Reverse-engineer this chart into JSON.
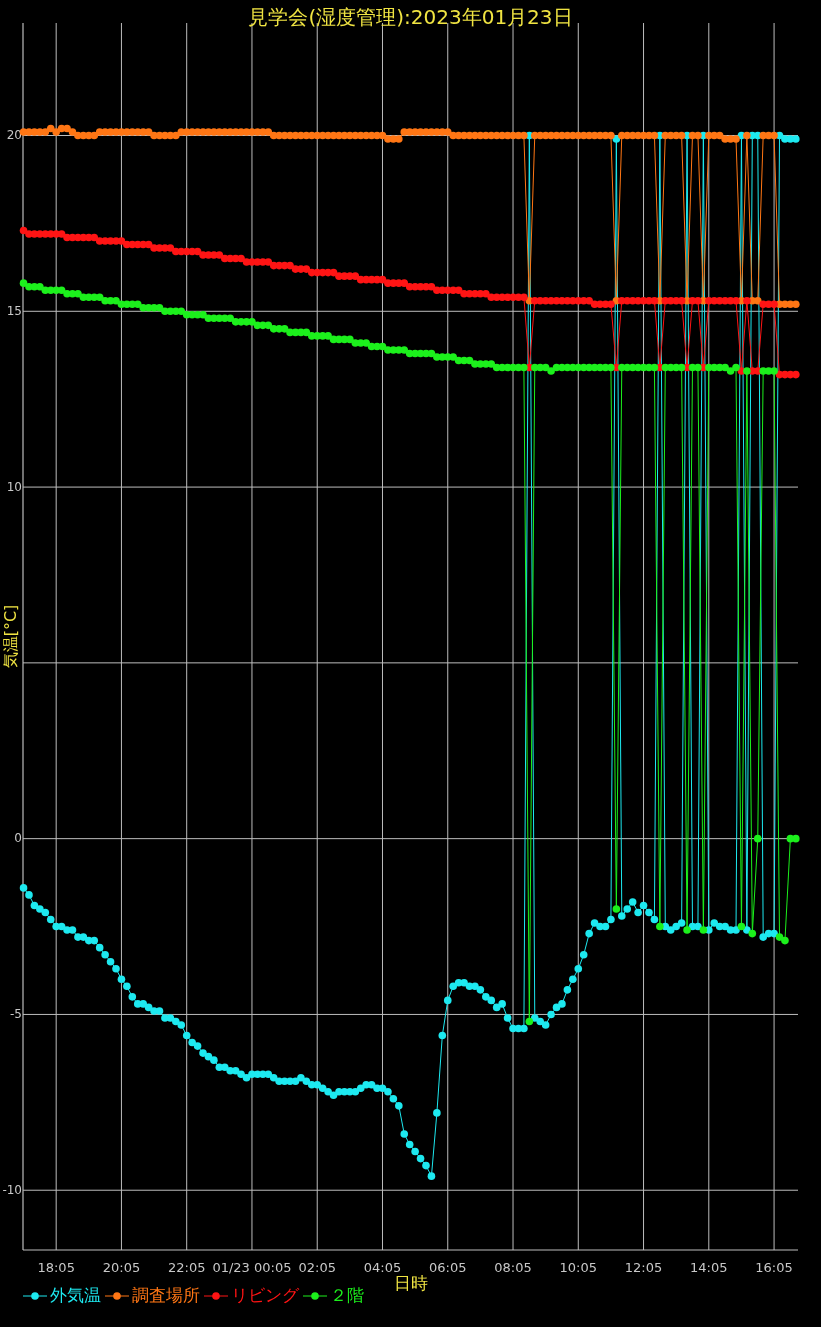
{
  "chart_data": {
    "type": "line",
    "title": "見学会(湿度管理):2023年01月23日",
    "xlabel": "日時",
    "ylabel": "気温[°C]",
    "xlim": [
      "2023-01-22T17:04",
      "2023-01-23T16:49"
    ],
    "ylim": [
      -11.7,
      23.2
    ],
    "xticks": [
      {
        "value": "2023-01-22T18:05",
        "label": "18:05"
      },
      {
        "value": "2023-01-22T20:05",
        "label": "20:05"
      },
      {
        "value": "2023-01-22T22:05",
        "label": "22:05"
      },
      {
        "value": "2023-01-23T00:05",
        "label": "01/23 00:05"
      },
      {
        "value": "2023-01-23T02:05",
        "label": "02:05"
      },
      {
        "value": "2023-01-23T04:05",
        "label": "04:05"
      },
      {
        "value": "2023-01-23T06:05",
        "label": "06:05"
      },
      {
        "value": "2023-01-23T08:05",
        "label": "08:05"
      },
      {
        "value": "2023-01-23T10:05",
        "label": "10:05"
      },
      {
        "value": "2023-01-23T12:05",
        "label": "12:05"
      },
      {
        "value": "2023-01-23T14:05",
        "label": "14:05"
      },
      {
        "value": "2023-01-23T16:05",
        "label": "16:05"
      }
    ],
    "yticks": [
      -10,
      -5,
      0,
      {
        "value": 5,
        "label": null
      },
      10,
      15,
      20
    ],
    "grid": true,
    "legend": "bottom left",
    "marker": "circle",
    "line_style": "solid",
    "x": [
      "2023-01-22T17:05",
      "2023-01-22T17:15",
      "2023-01-22T17:25",
      "2023-01-22T17:35",
      "2023-01-22T17:45",
      "2023-01-22T17:55",
      "2023-01-22T18:05",
      "2023-01-22T18:15",
      "2023-01-22T18:25",
      "2023-01-22T18:35",
      "2023-01-22T18:45",
      "2023-01-22T18:55",
      "2023-01-22T19:05",
      "2023-01-22T19:15",
      "2023-01-22T19:25",
      "2023-01-22T19:35",
      "2023-01-22T19:45",
      "2023-01-22T19:55",
      "2023-01-22T20:05",
      "2023-01-22T20:15",
      "2023-01-22T20:25",
      "2023-01-22T20:35",
      "2023-01-22T20:45",
      "2023-01-22T20:55",
      "2023-01-22T21:05",
      "2023-01-22T21:15",
      "2023-01-22T21:25",
      "2023-01-22T21:35",
      "2023-01-22T21:45",
      "2023-01-22T21:55",
      "2023-01-22T22:05",
      "2023-01-22T22:15",
      "2023-01-22T22:25",
      "2023-01-22T22:35",
      "2023-01-22T22:45",
      "2023-01-22T22:55",
      "2023-01-22T23:05",
      "2023-01-22T23:15",
      "2023-01-22T23:25",
      "2023-01-22T23:35",
      "2023-01-22T23:45",
      "2023-01-22T23:55",
      "2023-01-23T00:05",
      "2023-01-23T00:15",
      "2023-01-23T00:25",
      "2023-01-23T00:35",
      "2023-01-23T00:45",
      "2023-01-23T00:55",
      "2023-01-23T01:05",
      "2023-01-23T01:15",
      "2023-01-23T01:25",
      "2023-01-23T01:35",
      "2023-01-23T01:45",
      "2023-01-23T01:55",
      "2023-01-23T02:05",
      "2023-01-23T02:15",
      "2023-01-23T02:25",
      "2023-01-23T02:35",
      "2023-01-23T02:45",
      "2023-01-23T02:55",
      "2023-01-23T03:05",
      "2023-01-23T03:15",
      "2023-01-23T03:25",
      "2023-01-23T03:35",
      "2023-01-23T03:45",
      "2023-01-23T03:55",
      "2023-01-23T04:05",
      "2023-01-23T04:15",
      "2023-01-23T04:25",
      "2023-01-23T04:35",
      "2023-01-23T04:45",
      "2023-01-23T04:55",
      "2023-01-23T05:05",
      "2023-01-23T05:15",
      "2023-01-23T05:25",
      "2023-01-23T05:35",
      "2023-01-23T05:45",
      "2023-01-23T05:55",
      "2023-01-23T06:05",
      "2023-01-23T06:15",
      "2023-01-23T06:25",
      "2023-01-23T06:35",
      "2023-01-23T06:45",
      "2023-01-23T06:55",
      "2023-01-23T07:05",
      "2023-01-23T07:15",
      "2023-01-23T07:25",
      "2023-01-23T07:35",
      "2023-01-23T07:45",
      "2023-01-23T07:55",
      "2023-01-23T08:05",
      "2023-01-23T08:15",
      "2023-01-23T08:25",
      "2023-01-23T08:35",
      "2023-01-23T08:45",
      "2023-01-23T08:55",
      "2023-01-23T09:05",
      "2023-01-23T09:15",
      "2023-01-23T09:25",
      "2023-01-23T09:35",
      "2023-01-23T09:45",
      "2023-01-23T09:55",
      "2023-01-23T10:05",
      "2023-01-23T10:15",
      "2023-01-23T10:25",
      "2023-01-23T10:35",
      "2023-01-23T10:45",
      "2023-01-23T10:55",
      "2023-01-23T11:05",
      "2023-01-23T11:15",
      "2023-01-23T11:25",
      "2023-01-23T11:35",
      "2023-01-23T11:45",
      "2023-01-23T11:55",
      "2023-01-23T12:05",
      "2023-01-23T12:15",
      "2023-01-23T12:25",
      "2023-01-23T12:35",
      "2023-01-23T12:45",
      "2023-01-23T12:55",
      "2023-01-23T13:05",
      "2023-01-23T13:15",
      "2023-01-23T13:25",
      "2023-01-23T13:35",
      "2023-01-23T13:45",
      "2023-01-23T13:55",
      "2023-01-23T14:05",
      "2023-01-23T14:15",
      "2023-01-23T14:25",
      "2023-01-23T14:35",
      "2023-01-23T14:45",
      "2023-01-23T14:55",
      "2023-01-23T15:05",
      "2023-01-23T15:15",
      "2023-01-23T15:25",
      "2023-01-23T15:35",
      "2023-01-23T15:45",
      "2023-01-23T15:55",
      "2023-01-23T16:05",
      "2023-01-23T16:15",
      "2023-01-23T16:25",
      "2023-01-23T16:35",
      "2023-01-23T16:45"
    ],
    "series": [
      {
        "name": "外気温",
        "color": "#1de9f0",
        "values": [
          -1.4,
          -1.6,
          -1.9,
          -2.0,
          -2.1,
          -2.3,
          -2.5,
          -2.5,
          -2.6,
          -2.6,
          -2.8,
          -2.8,
          -2.9,
          -2.9,
          -3.1,
          -3.3,
          -3.5,
          -3.7,
          -4.0,
          -4.2,
          -4.5,
          -4.7,
          -4.7,
          -4.8,
          -4.9,
          -4.9,
          -5.1,
          -5.1,
          -5.2,
          -5.3,
          -5.6,
          -5.8,
          -5.9,
          -6.1,
          -6.2,
          -6.3,
          -6.5,
          -6.5,
          -6.6,
          -6.6,
          -6.7,
          -6.8,
          -6.7,
          -6.7,
          -6.7,
          -6.7,
          -6.8,
          -6.9,
          -6.9,
          -6.9,
          -6.9,
          -6.8,
          -6.9,
          -7.0,
          -7.0,
          -7.1,
          -7.2,
          -7.3,
          -7.2,
          -7.2,
          -7.2,
          -7.2,
          -7.1,
          -7.0,
          -7.0,
          -7.1,
          -7.1,
          -7.2,
          -7.4,
          -7.6,
          -8.4,
          -8.7,
          -8.9,
          -9.1,
          -9.3,
          -9.6,
          -7.8,
          -5.6,
          -4.6,
          -4.2,
          -4.1,
          -4.1,
          -4.2,
          -4.2,
          -4.3,
          -4.5,
          -4.6,
          -4.8,
          -4.7,
          -5.1,
          -5.4,
          -5.4,
          -5.4,
          20.0,
          -5.1,
          -5.2,
          -5.3,
          -5.0,
          -4.8,
          -4.7,
          -4.3,
          -4.0,
          -3.7,
          -3.3,
          -2.7,
          -2.4,
          -2.5,
          -2.5,
          -2.3,
          19.9,
          -2.2,
          -2.0,
          -1.8,
          -2.1,
          -1.9,
          -2.1,
          -2.3,
          20.0,
          -2.5,
          -2.6,
          -2.5,
          -2.4,
          20.0,
          -2.5,
          -2.5,
          20.0,
          -2.6,
          -2.4,
          -2.5,
          -2.5,
          -2.6,
          -2.6,
          20.0,
          -2.6,
          20.0,
          20.0,
          -2.8,
          -2.7,
          -2.7,
          20.0,
          19.9,
          19.9,
          19.9
        ]
      },
      {
        "name": "調査場所",
        "color": "#ff7614",
        "values": [
          20.1,
          20.1,
          20.1,
          20.1,
          20.1,
          20.2,
          20.1,
          20.2,
          20.2,
          20.1,
          20,
          20,
          20,
          20,
          20.1,
          20.1,
          20.1,
          20.1,
          20.1,
          20.1,
          20.1,
          20.1,
          20.1,
          20.1,
          20,
          20,
          20,
          20,
          20,
          20.1,
          20.1,
          20.1,
          20.1,
          20.1,
          20.1,
          20.1,
          20.1,
          20.1,
          20.1,
          20.1,
          20.1,
          20.1,
          20.1,
          20.1,
          20.1,
          20.1,
          20,
          20,
          20,
          20,
          20,
          20,
          20,
          20,
          20,
          20,
          20,
          20,
          20,
          20,
          20,
          20,
          20,
          20,
          20,
          20,
          20,
          19.9,
          19.9,
          19.9,
          20.1,
          20.1,
          20.1,
          20.1,
          20.1,
          20.1,
          20.1,
          20.1,
          20.1,
          20,
          20,
          20,
          20,
          20,
          20,
          20,
          20,
          20,
          20,
          20,
          20,
          20,
          20,
          15.3,
          20,
          20,
          20,
          20,
          20,
          20,
          20,
          20,
          20,
          20,
          20,
          20,
          20,
          20,
          20,
          15.3,
          20,
          20,
          20,
          20,
          20,
          20,
          20,
          15.3,
          20,
          20,
          20,
          20,
          15.3,
          20,
          20,
          15.3,
          20,
          20,
          20,
          19.9,
          19.9,
          19.9,
          15.3,
          20,
          15.3,
          15.3,
          20,
          20,
          20,
          15.2,
          15.2,
          15.2,
          15.2
        ]
      },
      {
        "name": "リビング",
        "color": "#ff1414",
        "values": [
          17.3,
          17.2,
          17.2,
          17.2,
          17.2,
          17.2,
          17.2,
          17.2,
          17.1,
          17.1,
          17.1,
          17.1,
          17.1,
          17.1,
          17,
          17,
          17,
          17,
          17,
          16.9,
          16.9,
          16.9,
          16.9,
          16.9,
          16.8,
          16.8,
          16.8,
          16.8,
          16.7,
          16.7,
          16.7,
          16.7,
          16.7,
          16.6,
          16.6,
          16.6,
          16.6,
          16.5,
          16.5,
          16.5,
          16.5,
          16.4,
          16.4,
          16.4,
          16.4,
          16.4,
          16.3,
          16.3,
          16.3,
          16.3,
          16.2,
          16.2,
          16.2,
          16.1,
          16.1,
          16.1,
          16.1,
          16.1,
          16,
          16,
          16,
          16,
          15.9,
          15.9,
          15.9,
          15.9,
          15.9,
          15.8,
          15.8,
          15.8,
          15.8,
          15.7,
          15.7,
          15.7,
          15.7,
          15.7,
          15.6,
          15.6,
          15.6,
          15.6,
          15.6,
          15.5,
          15.5,
          15.5,
          15.5,
          15.5,
          15.4,
          15.4,
          15.4,
          15.4,
          15.4,
          15.4,
          15.4,
          13.4,
          15.3,
          15.3,
          15.3,
          15.3,
          15.3,
          15.3,
          15.3,
          15.3,
          15.3,
          15.3,
          15.3,
          15.2,
          15.2,
          15.2,
          15.2,
          13.4,
          15.3,
          15.3,
          15.3,
          15.3,
          15.3,
          15.3,
          15.3,
          13.4,
          15.3,
          15.3,
          15.3,
          15.3,
          13.4,
          15.3,
          15.3,
          13.4,
          15.3,
          15.3,
          15.3,
          15.3,
          15.3,
          15.3,
          13.3,
          15.3,
          13.3,
          13.3,
          15.2,
          15.2,
          15.2,
          13.2,
          13.2,
          13.2,
          13.2
        ]
      },
      {
        "name": "２階",
        "color": "#1cf01c",
        "values": [
          15.8,
          15.7,
          15.7,
          15.7,
          15.6,
          15.6,
          15.6,
          15.6,
          15.5,
          15.5,
          15.5,
          15.4,
          15.4,
          15.4,
          15.4,
          15.3,
          15.3,
          15.3,
          15.2,
          15.2,
          15.2,
          15.2,
          15.1,
          15.1,
          15.1,
          15.1,
          15,
          15,
          15,
          15,
          14.9,
          14.9,
          14.9,
          14.9,
          14.8,
          14.8,
          14.8,
          14.8,
          14.8,
          14.7,
          14.7,
          14.7,
          14.7,
          14.6,
          14.6,
          14.6,
          14.5,
          14.5,
          14.5,
          14.4,
          14.4,
          14.4,
          14.4,
          14.3,
          14.3,
          14.3,
          14.3,
          14.2,
          14.2,
          14.2,
          14.2,
          14.1,
          14.1,
          14.1,
          14,
          14,
          14,
          13.9,
          13.9,
          13.9,
          13.9,
          13.8,
          13.8,
          13.8,
          13.8,
          13.8,
          13.7,
          13.7,
          13.7,
          13.7,
          13.6,
          13.6,
          13.6,
          13.5,
          13.5,
          13.5,
          13.5,
          13.4,
          13.4,
          13.4,
          13.4,
          13.4,
          13.4,
          -5.2,
          13.4,
          13.4,
          13.4,
          13.3,
          13.4,
          13.4,
          13.4,
          13.4,
          13.4,
          13.4,
          13.4,
          13.4,
          13.4,
          13.4,
          13.4,
          -2.0,
          13.4,
          13.4,
          13.4,
          13.4,
          13.4,
          13.4,
          13.4,
          -2.5,
          13.4,
          13.4,
          13.4,
          13.4,
          -2.6,
          13.4,
          13.4,
          -2.6,
          13.4,
          13.4,
          13.4,
          13.4,
          13.3,
          13.4,
          -2.5,
          13.3,
          -2.7,
          0,
          13.3,
          13.3,
          13.3,
          -2.8,
          -2.9,
          0,
          0
        ]
      }
    ]
  }
}
